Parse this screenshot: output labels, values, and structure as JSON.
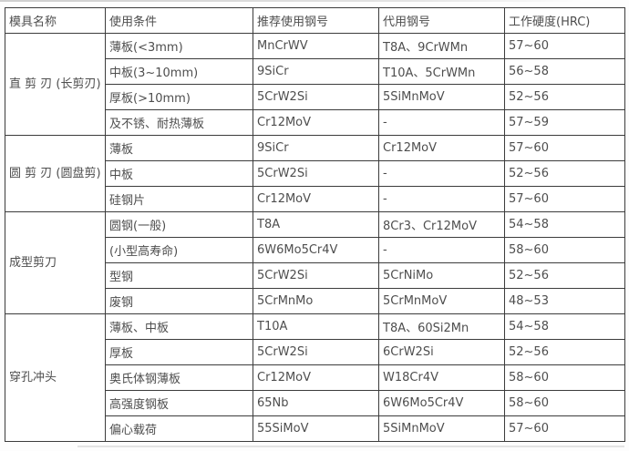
{
  "table": {
    "columns": [
      "模具名称",
      "使用条件",
      "推荐使用钢号",
      "代用钢号",
      "工作硬度(HRC)"
    ],
    "groups": [
      {
        "name": "直 剪 刃 (长剪刃)",
        "rows": [
          {
            "condition": "薄板(<3mm)",
            "recommended": "MnCrWV",
            "substitute": "T8A、9CrWMn",
            "hardness": "57~60"
          },
          {
            "condition": "中板(3~10mm)",
            "recommended": "9SiCr",
            "substitute": "T10A、5CrWMn",
            "hardness": "56~58"
          },
          {
            "condition": "厚板(>10mm)",
            "recommended": "5CrW2Si",
            "substitute": "5SiMnMoV",
            "hardness": "52~56"
          },
          {
            "condition": "及不锈、耐热薄板",
            "recommended": "Cr12MoV",
            "substitute": "-",
            "hardness": "57~59"
          }
        ]
      },
      {
        "name": "圆 剪 刃 (圆盘剪)",
        "rows": [
          {
            "condition": "薄板",
            "recommended": "9SiCr",
            "substitute": "Cr12MoV",
            "hardness": "57~60"
          },
          {
            "condition": "中板",
            "recommended": "5CrW2Si",
            "substitute": "-",
            "hardness": "52~56"
          },
          {
            "condition": "硅钢片",
            "recommended": "Cr12MoV",
            "substitute": "-",
            "hardness": "57~60"
          }
        ]
      },
      {
        "name": "成型剪刀",
        "rows": [
          {
            "condition": "圆钢(一般)",
            "recommended": "T8A",
            "substitute": "8Cr3、Cr12MoV",
            "hardness": "54~58"
          },
          {
            "condition": "(小型高寿命)",
            "recommended": "6W6Mo5Cr4V",
            "substitute": "-",
            "hardness": "58~60"
          },
          {
            "condition": "型钢",
            "recommended": "5CrW2Si",
            "substitute": "5CrNiMo",
            "hardness": "52~56"
          },
          {
            "condition": "废钢",
            "recommended": "5CrMnMo",
            "substitute": "5CrMnMoV",
            "hardness": "48~53"
          }
        ]
      },
      {
        "name": "穿孔冲头",
        "rows": [
          {
            "condition": "薄板、中板",
            "recommended": "T10A",
            "substitute": "T8A、60Si2Mn",
            "hardness": "54~58"
          },
          {
            "condition": "厚板",
            "recommended": "5CrW2Si",
            "substitute": "6CrW2Si",
            "hardness": "52~56"
          },
          {
            "condition": "奥氏体钢薄板",
            "recommended": "Cr12MoV",
            "substitute": "W18Cr4V",
            "hardness": "58~60"
          },
          {
            "condition": "高强度钢板",
            "recommended": "65Nb",
            "substitute": "6W6Mo5Cr4V",
            "hardness": "58~60"
          },
          {
            "condition": "偏心载荷",
            "recommended": "55SiMoV",
            "substitute": "5SiMnMoV",
            "hardness": "57~60"
          }
        ]
      }
    ]
  }
}
